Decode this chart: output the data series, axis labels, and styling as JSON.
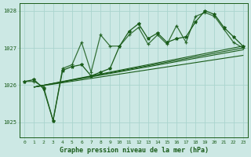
{
  "title": "Graphe pression niveau de la mer (hPa)",
  "background_color": "#cce8e4",
  "grid_color": "#aad4ce",
  "line_color_dark": "#1a5c1a",
  "xlim": [
    -0.5,
    23.5
  ],
  "ylim": [
    1024.6,
    1028.2
  ],
  "yticks": [
    1025,
    1026,
    1027,
    1028
  ],
  "xticks": [
    0,
    1,
    2,
    3,
    4,
    5,
    6,
    7,
    8,
    9,
    10,
    11,
    12,
    13,
    14,
    15,
    16,
    17,
    18,
    19,
    20,
    21,
    22,
    23
  ],
  "series_jagged1": [
    1026.1,
    1026.1,
    1025.95,
    1025.05,
    1026.45,
    1026.55,
    1027.15,
    1026.35,
    1027.35,
    1027.05,
    1027.05,
    1027.35,
    1027.55,
    1027.1,
    1027.35,
    1027.1,
    1027.6,
    1027.15,
    1027.85,
    1027.95,
    1027.85,
    1027.5,
    1027.15,
    1027.0
  ],
  "series_jagged2": [
    1026.1,
    1026.15,
    1025.9,
    1025.05,
    1026.4,
    1026.5,
    1026.55,
    1026.25,
    1026.35,
    1026.45,
    1027.05,
    1027.45,
    1027.65,
    1027.25,
    1027.4,
    1027.15,
    1027.25,
    1027.3,
    1027.7,
    1028.0,
    1027.9,
    1027.55,
    1027.3,
    1027.05
  ],
  "trend_lines": [
    {
      "x": [
        1,
        23
      ],
      "y": [
        1025.95,
        1027.0
      ]
    },
    {
      "x": [
        1,
        23
      ],
      "y": [
        1025.95,
        1026.8
      ]
    },
    {
      "x": [
        1,
        23
      ],
      "y": [
        1025.95,
        1026.95
      ]
    },
    {
      "x": [
        1,
        23
      ],
      "y": [
        1025.95,
        1027.05
      ]
    }
  ]
}
